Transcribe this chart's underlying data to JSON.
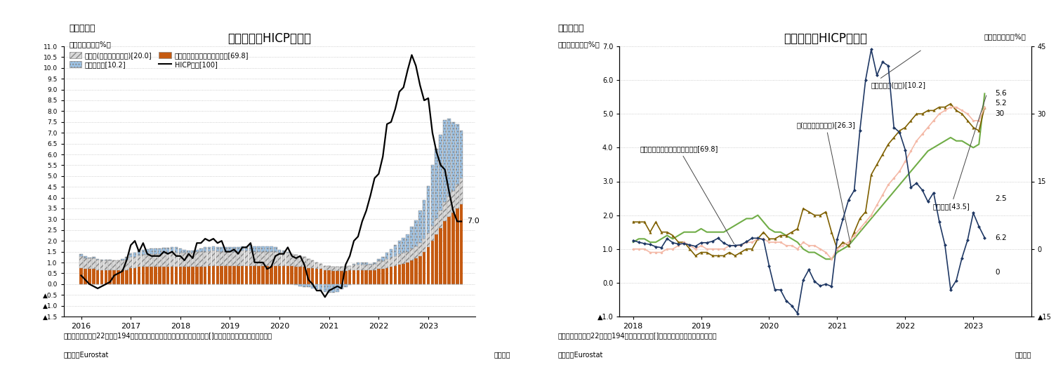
{
  "fig1": {
    "title": "ユーロ圈のHICP上昇率",
    "subtitle": "（図表１）",
    "ylabel": "（前年同月比、%）",
    "footnote1": "（注）ユーロ圈は22年まで194か国、最新月の寄与度は簡易的な試算値、[]内は総合指数に対するウェイト",
    "footnote2": "（資料）Eurostat",
    "footnote3": "（月次）",
    "food_label": "飲食料(アルコール含む)[20.0]",
    "energy_label": "エネルギー[10.2]",
    "core_label": "エネルギー・飲食料除く総合[69.8]",
    "hicp_label": "HICP総合[100]",
    "food_color": "#d9d9d9",
    "food_hatch": "////",
    "energy_color": "#9dc3e6",
    "energy_hatch": "....",
    "core_color": "#c55a11",
    "line_color": "#000000",
    "start_year": 2016,
    "start_month": 1,
    "food_data": [
      0.55,
      0.5,
      0.48,
      0.5,
      0.48,
      0.45,
      0.45,
      0.45,
      0.44,
      0.45,
      0.46,
      0.48,
      0.52,
      0.52,
      0.52,
      0.55,
      0.56,
      0.6,
      0.6,
      0.6,
      0.62,
      0.64,
      0.66,
      0.66,
      0.65,
      0.64,
      0.65,
      0.65,
      0.7,
      0.7,
      0.7,
      0.66,
      0.7,
      0.66,
      0.65,
      0.65,
      0.65,
      0.65,
      0.65,
      0.7,
      0.7,
      0.7,
      0.65,
      0.65,
      0.65,
      0.65,
      0.65,
      0.65,
      0.6,
      0.6,
      0.6,
      0.55,
      0.55,
      0.5,
      0.45,
      0.4,
      0.35,
      0.3,
      0.25,
      0.2,
      0.2,
      0.2,
      0.2,
      0.2,
      0.25,
      0.2,
      0.25,
      0.25,
      0.25,
      0.25,
      0.25,
      0.3,
      0.35,
      0.35,
      0.4,
      0.42,
      0.45,
      0.5,
      0.5,
      0.5,
      0.55,
      0.55,
      0.6,
      0.6,
      0.65,
      0.7,
      0.75,
      0.8,
      0.9,
      0.95,
      1.0,
      1.1,
      1.2
    ],
    "energy_data": [
      0.1,
      0.08,
      0.05,
      0.05,
      0.03,
      0.02,
      0.03,
      0.04,
      0.0,
      0.0,
      0.05,
      0.12,
      0.15,
      0.2,
      0.25,
      0.25,
      0.25,
      0.25,
      0.25,
      0.25,
      0.25,
      0.25,
      0.25,
      0.25,
      0.2,
      0.15,
      0.1,
      0.1,
      0.1,
      0.15,
      0.2,
      0.2,
      0.2,
      0.2,
      0.2,
      0.2,
      0.2,
      0.2,
      0.2,
      0.2,
      0.2,
      0.25,
      0.25,
      0.25,
      0.25,
      0.25,
      0.25,
      0.2,
      0.15,
      0.1,
      0.05,
      0.0,
      -0.05,
      -0.1,
      -0.15,
      -0.15,
      -0.2,
      -0.25,
      -0.3,
      -0.35,
      -0.4,
      -0.4,
      -0.35,
      -0.25,
      -0.15,
      -0.05,
      0.05,
      0.1,
      0.1,
      0.1,
      0.05,
      0.05,
      0.1,
      0.2,
      0.3,
      0.4,
      0.5,
      0.6,
      0.7,
      0.8,
      1.0,
      1.2,
      1.5,
      1.8,
      2.2,
      2.8,
      3.2,
      3.5,
      3.8,
      3.6,
      3.2,
      2.8,
      2.2
    ],
    "core_data": [
      0.75,
      0.7,
      0.7,
      0.7,
      0.65,
      0.65,
      0.65,
      0.65,
      0.65,
      0.65,
      0.65,
      0.65,
      0.75,
      0.75,
      0.8,
      0.8,
      0.8,
      0.8,
      0.8,
      0.8,
      0.8,
      0.8,
      0.8,
      0.8,
      0.8,
      0.8,
      0.8,
      0.8,
      0.8,
      0.8,
      0.8,
      0.85,
      0.85,
      0.85,
      0.85,
      0.85,
      0.85,
      0.85,
      0.85,
      0.85,
      0.85,
      0.85,
      0.85,
      0.85,
      0.85,
      0.85,
      0.85,
      0.85,
      0.85,
      0.85,
      0.85,
      0.85,
      0.8,
      0.8,
      0.8,
      0.75,
      0.75,
      0.7,
      0.7,
      0.65,
      0.65,
      0.6,
      0.6,
      0.6,
      0.6,
      0.65,
      0.65,
      0.65,
      0.65,
      0.65,
      0.65,
      0.65,
      0.7,
      0.7,
      0.75,
      0.8,
      0.85,
      0.9,
      0.95,
      1.0,
      1.1,
      1.2,
      1.3,
      1.5,
      1.7,
      2.0,
      2.3,
      2.6,
      2.9,
      3.1,
      3.3,
      3.5,
      3.7
    ],
    "hicp_data": [
      0.4,
      0.2,
      0.0,
      -0.1,
      -0.2,
      -0.1,
      0.0,
      0.1,
      0.4,
      0.5,
      0.6,
      1.1,
      1.8,
      2.0,
      1.5,
      1.9,
      1.4,
      1.3,
      1.3,
      1.3,
      1.5,
      1.4,
      1.5,
      1.3,
      1.3,
      1.1,
      1.4,
      1.2,
      1.9,
      1.9,
      2.1,
      2.0,
      2.1,
      1.9,
      2.0,
      1.5,
      1.5,
      1.6,
      1.4,
      1.7,
      1.7,
      1.9,
      1.0,
      1.0,
      1.0,
      0.7,
      0.8,
      1.3,
      1.4,
      1.4,
      1.7,
      1.3,
      1.2,
      1.3,
      0.9,
      0.2,
      0.0,
      -0.3,
      -0.3,
      -0.6,
      -0.3,
      -0.2,
      -0.1,
      -0.2,
      0.9,
      1.3,
      2.0,
      2.2,
      2.9,
      3.4,
      4.1,
      4.9,
      5.1,
      5.9,
      7.4,
      7.5,
      8.1,
      8.9,
      9.1,
      9.9,
      10.6,
      10.1,
      9.2,
      8.5,
      8.6,
      7.0,
      6.1,
      5.5,
      5.3,
      4.3,
      3.4,
      2.9,
      2.9
    ]
  },
  "fig2": {
    "title": "ユーロ圈のHICP上昇率",
    "subtitle": "（図表２）",
    "ylabel_left": "（前年同月比、%）",
    "ylabel_right": "（前年同月比、%）",
    "footnote1": "（注）ユーロ圈は22年まで194か国のデータ、[]内は総合指数に対するウェイト",
    "footnote2": "（資料）Eurostat",
    "footnote3": "（月次）",
    "energy_label": "エネルギー(右軟)[10.2]",
    "goods_label": "財(エネルギー除く)[26.3]",
    "core_label": "エネルギーと飲食料を除く総合[69.8]",
    "services_label": "サービス[43.5]",
    "energy_color": "#1f3864",
    "goods_color": "#7f6000",
    "services_color": "#70ad47",
    "core_color": "#f4b9a7",
    "start_year": 2018,
    "start_month": 1,
    "energy_right_data": [
      1.9,
      1.5,
      1.2,
      1.0,
      0.5,
      0.3,
      2.3,
      1.4,
      1.1,
      1.2,
      0.9,
      0.6,
      1.4,
      1.4,
      1.7,
      2.4,
      1.3,
      0.7,
      0.8,
      0.9,
      1.6,
      2.4,
      2.4,
      2.1,
      -3.8,
      -9.0,
      -9.1,
      -11.5,
      -12.6,
      -14.3,
      -6.9,
      -4.6,
      -7.2,
      -8.2,
      -7.8,
      -8.3,
      2.2,
      6.6,
      10.9,
      13.0,
      26.3,
      37.5,
      44.3,
      38.6,
      41.5,
      40.7,
      27.0,
      25.9,
      22.0,
      13.7,
      14.6,
      13.1,
      10.5,
      12.5,
      6.1,
      0.9,
      -9.0,
      -7.0,
      -2.0,
      2.0,
      8.0,
      5.0,
      2.5
    ],
    "goods_data": [
      1.8,
      1.8,
      1.8,
      1.5,
      1.8,
      1.5,
      1.5,
      1.4,
      1.2,
      1.2,
      1.0,
      0.8,
      0.9,
      0.9,
      0.8,
      0.8,
      0.8,
      0.9,
      0.8,
      0.9,
      1.0,
      1.0,
      1.3,
      1.5,
      1.3,
      1.3,
      1.4,
      1.4,
      1.5,
      1.6,
      2.2,
      2.1,
      2.0,
      2.0,
      2.1,
      1.5,
      1.0,
      1.2,
      1.1,
      1.5,
      1.9,
      2.1,
      3.2,
      3.5,
      3.8,
      4.1,
      4.3,
      4.5,
      4.6,
      4.8,
      5.0,
      5.0,
      5.1,
      5.1,
      5.2,
      5.2,
      5.3,
      5.1,
      5.0,
      4.8,
      4.6,
      4.5,
      5.2
    ],
    "services_data": [
      1.2,
      1.3,
      1.3,
      1.2,
      1.2,
      1.3,
      1.4,
      1.3,
      1.4,
      1.5,
      1.5,
      1.5,
      1.6,
      1.5,
      1.5,
      1.5,
      1.5,
      1.6,
      1.7,
      1.8,
      1.9,
      1.9,
      2.0,
      1.8,
      1.6,
      1.5,
      1.5,
      1.4,
      1.3,
      1.2,
      1.0,
      0.9,
      0.9,
      0.8,
      0.7,
      0.7,
      0.9,
      1.0,
      1.1,
      1.3,
      1.5,
      1.7,
      1.9,
      2.1,
      2.3,
      2.5,
      2.7,
      2.9,
      3.1,
      3.3,
      3.5,
      3.7,
      3.9,
      4.0,
      4.1,
      4.2,
      4.3,
      4.2,
      4.2,
      4.1,
      4.0,
      4.1,
      5.6
    ],
    "core_data": [
      1.0,
      1.0,
      1.0,
      0.9,
      0.9,
      0.9,
      1.0,
      1.0,
      1.1,
      1.2,
      1.1,
      1.0,
      1.1,
      1.0,
      1.0,
      1.0,
      1.0,
      1.1,
      1.1,
      1.1,
      1.2,
      1.2,
      1.3,
      1.3,
      1.2,
      1.2,
      1.2,
      1.1,
      1.1,
      1.0,
      1.2,
      1.1,
      1.1,
      1.0,
      0.9,
      0.7,
      1.0,
      1.1,
      1.2,
      1.4,
      1.6,
      1.8,
      2.0,
      2.3,
      2.6,
      2.9,
      3.1,
      3.3,
      3.6,
      3.9,
      4.2,
      4.4,
      4.6,
      4.8,
      5.0,
      5.1,
      5.2,
      5.2,
      5.1,
      5.0,
      4.8,
      4.8,
      5.2
    ]
  },
  "background_color": "#ffffff",
  "grid_color": "#c0c0c0"
}
